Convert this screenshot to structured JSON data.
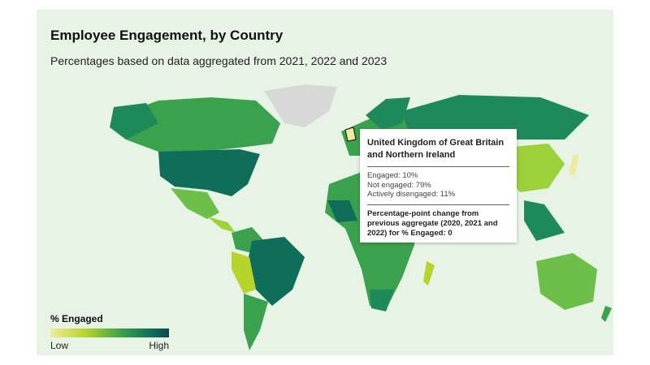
{
  "header": {
    "title": "Employee Engagement, by Country",
    "subtitle": "Percentages based on data aggregated from 2021, 2022 and 2023"
  },
  "legend": {
    "title": "% Engaged",
    "low": "Low",
    "high": "High",
    "colors": [
      "#ecec9a",
      "#b6d42b",
      "#3aa14c",
      "#0f6e5a",
      "#0c4a4a"
    ]
  },
  "tooltip": {
    "country": "United Kingdom of Great Britain and Northern Ireland",
    "engaged": "Engaged: 10%",
    "not_engaged": "Not engaged: 79%",
    "actively_disengaged": "Actively disengaged: 11%",
    "change": "Percentage-point change from previous aggregate (2020, 2021 and 2022) for % Engaged: 0"
  }
}
